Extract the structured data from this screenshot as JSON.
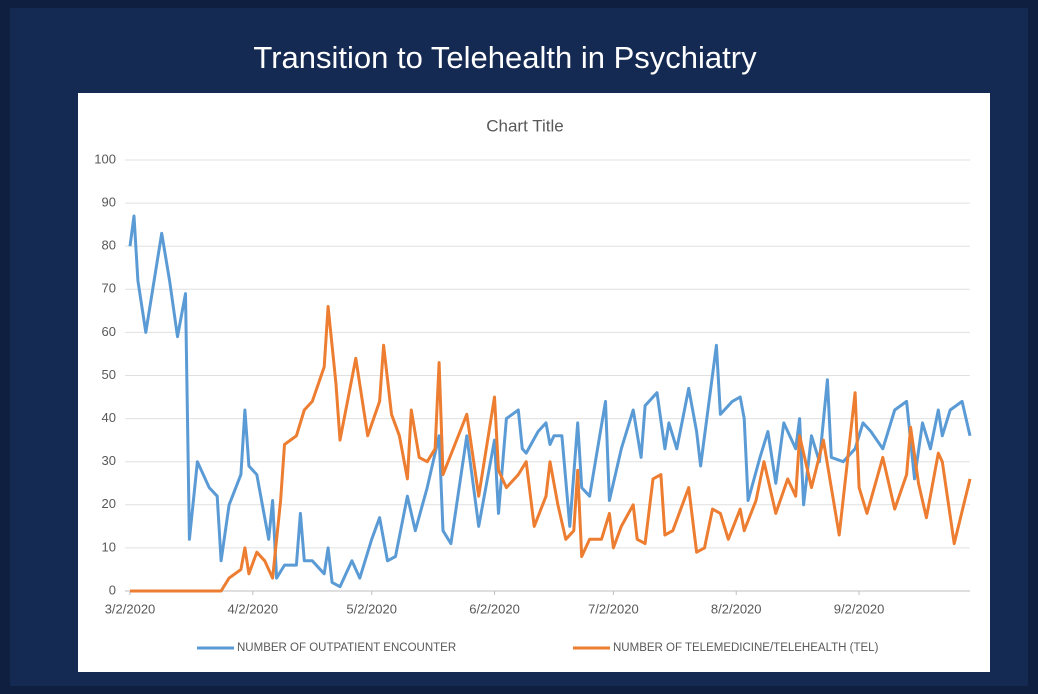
{
  "header": {
    "title": "Transition to Telehealth in Psychiatry"
  },
  "chart_data": {
    "type": "line",
    "title": "Chart Title",
    "xlim": [
      "3/2/2020",
      "9/30/2020"
    ],
    "xticks": [
      "3/2/2020",
      "4/2/2020",
      "5/2/2020",
      "6/2/2020",
      "7/2/2020",
      "8/2/2020",
      "9/2/2020"
    ],
    "ylim": [
      0,
      100
    ],
    "yticks": [
      0,
      10,
      20,
      30,
      40,
      50,
      60,
      70,
      80,
      90,
      100
    ],
    "grid": true,
    "legend": "bottom",
    "series": [
      {
        "name": "NUMBER OF OUTPATIENT ENCOUNTER",
        "color": "#5b9bd5",
        "x": [
          "3/2/2020",
          "3/3/2020",
          "3/4/2020",
          "3/6/2020",
          "3/10/2020",
          "3/12/2020",
          "3/14/2020",
          "3/16/2020",
          "3/17/2020",
          "3/19/2020",
          "3/20/2020",
          "3/22/2020",
          "3/24/2020",
          "3/25/2020",
          "3/27/2020",
          "3/30/2020",
          "3/31/2020",
          "4/1/2020",
          "4/3/2020",
          "4/6/2020",
          "4/7/2020",
          "4/8/2020",
          "4/10/2020",
          "4/13/2020",
          "4/14/2020",
          "4/15/2020",
          "4/17/2020",
          "4/20/2020",
          "4/21/2020",
          "4/22/2020",
          "4/24/2020",
          "4/27/2020",
          "4/29/2020",
          "5/2/2020",
          "5/4/2020",
          "5/6/2020",
          "5/8/2020",
          "5/11/2020",
          "5/13/2020",
          "5/16/2020",
          "5/19/2020",
          "5/20/2020",
          "5/22/2020",
          "5/26/2020",
          "5/29/2020",
          "6/2/2020",
          "6/3/2020",
          "6/5/2020",
          "6/8/2020",
          "6/9/2020",
          "6/10/2020",
          "6/13/2020",
          "6/15/2020",
          "6/16/2020",
          "6/17/2020",
          "6/19/2020",
          "6/21/2020",
          "6/23/2020",
          "6/24/2020",
          "6/26/2020",
          "6/30/2020",
          "7/1/2020",
          "7/4/2020",
          "7/7/2020",
          "7/9/2020",
          "7/10/2020",
          "7/13/2020",
          "7/15/2020",
          "7/16/2020",
          "7/18/2020",
          "7/21/2020",
          "7/23/2020",
          "7/24/2020",
          "7/28/2020",
          "7/29/2020",
          "8/1/2020",
          "8/3/2020",
          "8/4/2020",
          "8/5/2020",
          "8/8/2020",
          "8/10/2020",
          "8/12/2020",
          "8/14/2020",
          "8/17/2020",
          "8/18/2020",
          "8/19/2020",
          "8/21/2020",
          "8/23/2020",
          "8/25/2020",
          "8/26/2020",
          "8/29/2020",
          "9/1/2020",
          "9/3/2020",
          "9/5/2020",
          "9/8/2020",
          "9/11/2020",
          "9/14/2020",
          "9/16/2020",
          "9/18/2020",
          "9/20/2020",
          "9/22/2020",
          "9/23/2020",
          "9/25/2020",
          "9/28/2020",
          "9/30/2020"
        ],
        "values": [
          80,
          87,
          72,
          60,
          83,
          72,
          59,
          69,
          12,
          30,
          28,
          24,
          22,
          7,
          20,
          27,
          42,
          29,
          27,
          12,
          21,
          3,
          6,
          6,
          18,
          7,
          7,
          4,
          10,
          2,
          1,
          7,
          3,
          12,
          17,
          7,
          8,
          22,
          14,
          24,
          36,
          14,
          11,
          36,
          15,
          35,
          18,
          40,
          42,
          33,
          32,
          37,
          39,
          34,
          36,
          36,
          15,
          39,
          24,
          22,
          44,
          21,
          33,
          42,
          31,
          43,
          46,
          33,
          39,
          33,
          47,
          37,
          29,
          57,
          41,
          44,
          45,
          40,
          21,
          31,
          37,
          25,
          39,
          33,
          40,
          20,
          36,
          30,
          49,
          31,
          30,
          33,
          39,
          37,
          33,
          42,
          44,
          26,
          39,
          33,
          42,
          36,
          42,
          44,
          36
        ]
      },
      {
        "name": "NUMBER OF TELEMEDICINE/TELEHEALTH (TEL)",
        "color": "#ed7d31",
        "x": [
          "3/2/2020",
          "3/25/2020",
          "3/27/2020",
          "3/30/2020",
          "3/31/2020",
          "4/1/2020",
          "4/3/2020",
          "4/5/2020",
          "4/7/2020",
          "4/9/2020",
          "4/10/2020",
          "4/13/2020",
          "4/15/2020",
          "4/17/2020",
          "4/20/2020",
          "4/21/2020",
          "4/23/2020",
          "4/24/2020",
          "4/28/2020",
          "5/1/2020",
          "5/4/2020",
          "5/5/2020",
          "5/7/2020",
          "5/9/2020",
          "5/11/2020",
          "5/12/2020",
          "5/14/2020",
          "5/16/2020",
          "5/18/2020",
          "5/19/2020",
          "5/20/2020",
          "5/23/2020",
          "5/26/2020",
          "5/29/2020",
          "6/2/2020",
          "6/3/2020",
          "6/5/2020",
          "6/8/2020",
          "6/10/2020",
          "6/12/2020",
          "6/15/2020",
          "6/16/2020",
          "6/18/2020",
          "6/20/2020",
          "6/22/2020",
          "6/23/2020",
          "6/24/2020",
          "6/26/2020",
          "6/29/2020",
          "7/1/2020",
          "7/2/2020",
          "7/4/2020",
          "7/7/2020",
          "7/8/2020",
          "7/10/2020",
          "7/12/2020",
          "7/14/2020",
          "7/15/2020",
          "7/17/2020",
          "7/21/2020",
          "7/23/2020",
          "7/25/2020",
          "7/27/2020",
          "7/29/2020",
          "7/31/2020",
          "8/3/2020",
          "8/4/2020",
          "8/7/2020",
          "8/9/2020",
          "8/12/2020",
          "8/15/2020",
          "8/17/2020",
          "8/18/2020",
          "8/21/2020",
          "8/24/2020",
          "8/28/2020",
          "9/1/2020",
          "9/2/2020",
          "9/4/2020",
          "9/8/2020",
          "9/11/2020",
          "9/14/2020",
          "9/15/2020",
          "9/17/2020",
          "9/19/2020",
          "9/22/2020",
          "9/23/2020",
          "9/26/2020",
          "9/30/2020"
        ],
        "values": [
          0,
          0,
          3,
          5,
          10,
          4,
          9,
          7,
          3,
          21,
          34,
          36,
          42,
          44,
          52,
          66,
          48,
          35,
          54,
          36,
          44,
          57,
          41,
          36,
          26,
          42,
          31,
          30,
          33,
          53,
          27,
          34,
          41,
          22,
          45,
          28,
          24,
          27,
          30,
          15,
          22,
          30,
          20,
          12,
          14,
          28,
          8,
          12,
          12,
          18,
          10,
          15,
          20,
          12,
          11,
          26,
          27,
          13,
          14,
          24,
          9,
          10,
          19,
          18,
          12,
          19,
          14,
          21,
          30,
          18,
          26,
          22,
          36,
          24,
          35,
          13,
          46,
          24,
          18,
          31,
          19,
          27,
          38,
          25,
          17,
          32,
          30,
          11,
          26
        ]
      }
    ]
  }
}
